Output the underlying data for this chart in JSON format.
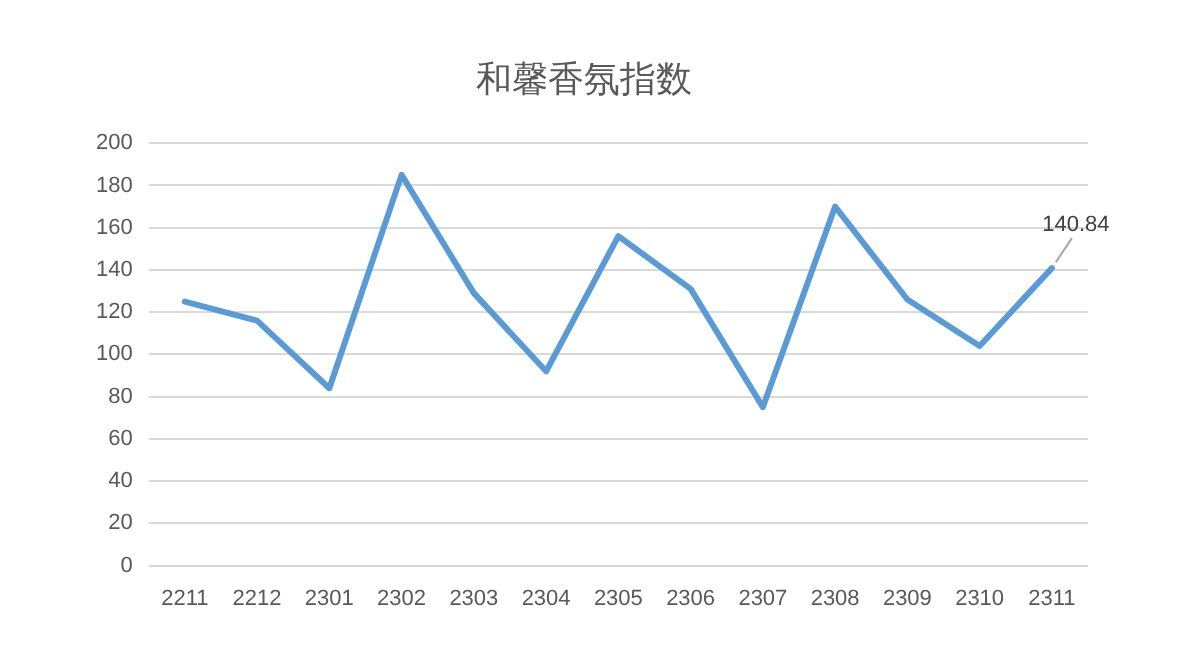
{
  "chart_data": {
    "type": "line",
    "title": "和馨香氛指数",
    "categories": [
      "2211",
      "2212",
      "2301",
      "2302",
      "2303",
      "2304",
      "2305",
      "2306",
      "2307",
      "2308",
      "2309",
      "2310",
      "2311"
    ],
    "series": [
      {
        "color": "#5b9bd5",
        "values": [
          125,
          116,
          84,
          185,
          129,
          92,
          156,
          131,
          75,
          170,
          126,
          104,
          140.84
        ],
        "value_labels": [
          null,
          null,
          null,
          null,
          null,
          null,
          null,
          null,
          null,
          null,
          null,
          null,
          "140.84"
        ]
      }
    ],
    "ylim": [
      0,
      200
    ],
    "yticks": [
      0,
      20,
      40,
      60,
      80,
      100,
      120,
      140,
      160,
      180,
      200
    ],
    "grid": "y",
    "legend": false,
    "marker": "none",
    "line_style": "solid"
  }
}
